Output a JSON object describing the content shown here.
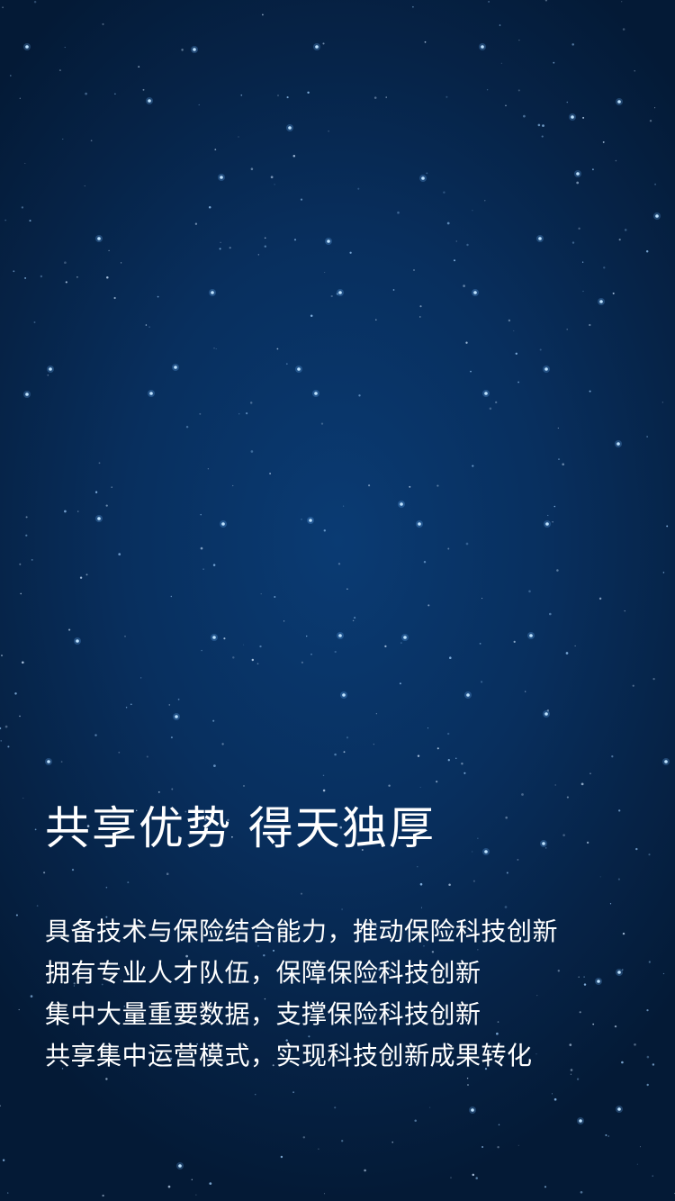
{
  "headline": "共享优势 得天独厚",
  "lines": [
    "具备技术与保险结合能力，推动保险科技创新",
    "拥有专业人才队伍，保障保险科技创新",
    "集中大量重要数据，支撑保险科技创新",
    "共享集中运营模式，实现科技创新成果转化"
  ],
  "colors": {
    "background": "#062347",
    "text": "#ffffff",
    "star": "#6fb8ff"
  }
}
